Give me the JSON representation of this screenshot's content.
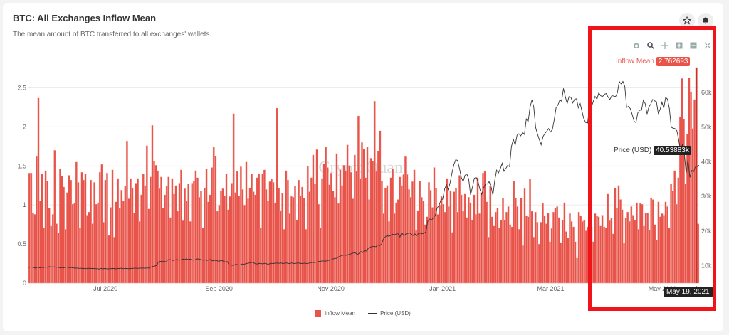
{
  "header": {
    "title": "BTC: All Exchanges Inflow Mean",
    "subtitle": "The mean amount of BTC transferred to all exchanges' wallets.",
    "star_icon": "star-icon",
    "bell_icon": "bell-icon"
  },
  "toolbar": {
    "icons": [
      "camera-icon",
      "zoom-icon",
      "pan-icon",
      "zoom-in-icon",
      "zoom-out-icon",
      "autoscale-icon"
    ]
  },
  "watermark": "CryptoQuant",
  "tooltip": {
    "inflow_label": "Inflow Mean",
    "inflow_value": "2.762693",
    "price_label": "Price (USD)",
    "price_value": "40.53883k",
    "date_label": "May 19, 2021"
  },
  "colors": {
    "bar": "#e8534a",
    "bar_edge": "#f7c6c1",
    "line": "#333333",
    "highlight": "#f0131a"
  },
  "chart_data": {
    "type": "bar",
    "title": "BTC: All Exchanges Inflow Mean",
    "x_range": [
      "2020-05-20",
      "2021-05-21"
    ],
    "x_ticks": [
      "Jul 2020",
      "Sep 2020",
      "Nov 2020",
      "Jan 2021",
      "Mar 2021",
      "May 2021"
    ],
    "y_left": {
      "ticks": [
        "0",
        "0.5",
        "1",
        "1.5",
        "2",
        "2.5"
      ],
      "range": [
        0,
        2.75
      ]
    },
    "y_right": {
      "ticks": [
        "10k",
        "20k",
        "30k",
        "40k",
        "50k",
        "60k"
      ],
      "range": [
        5000,
        67000
      ]
    },
    "grid": true,
    "legend_placement": "bottom-center",
    "series": [
      {
        "name": "Inflow Mean",
        "type": "bar",
        "axis": "left",
        "values": [
          1.41,
          1.41,
          0.9,
          0.88,
          1.62,
          2.37,
          1.05,
          1.4,
          0.71,
          1.44,
          1.31,
          0.96,
          0.73,
          0.88,
          1.7,
          0.76,
          0.64,
          1.46,
          1.37,
          1.23,
          0.69,
          1.16,
          1.38,
          1.32,
          1.01,
          1.02,
          1.55,
          1.29,
          0.71,
          1.42,
          1.32,
          1.4,
          0.87,
          0.91,
          1.32,
          0.76,
          1.29,
          1.01,
          1.03,
          1.42,
          1.52,
          0.78,
          1.32,
          1.41,
          0.61,
          0.97,
          1.45,
          0.59,
          1.04,
          1.34,
          0.96,
          1.19,
          1.05,
          1.24,
          1.82,
          1.08,
          1.34,
          1.22,
          0.9,
          1.28,
          1.34,
          0.79,
          1.13,
          1.4,
          1.25,
          1.76,
          0.95,
          1.36,
          2.02,
          1.56,
          1.51,
          1.44,
          1.21,
          1.36,
          0.96,
          1.13,
          1.24,
          1.36,
          0.84,
          1.34,
          1.14,
          1.25,
          0.92,
          1.28,
          1.45,
          0.8,
          1.21,
          1.05,
          1.27,
          0.79,
          1.28,
          1.31,
          1.44,
          1.35,
          1.1,
          1.18,
          0.71,
          1.22,
          1.46,
          1.04,
          1.13,
          1.48,
          1.74,
          1.63,
          0.92,
          1.0,
          1.18,
          1.21,
          1.12,
          1.4,
          0.94,
          1.11,
          1.28,
          2.17,
          1.16,
          1.43,
          1.12,
          1.49,
          1.2,
          1.0,
          1.55,
          1.08,
          1.22,
          1.4,
          1.17,
          1.13,
          1.35,
          1.4,
          0.71,
          1.4,
          1.45,
          1.2,
          1.05,
          1.3,
          1.33,
          1.29,
          1.03,
          2.24,
          1.22,
          0.93,
          1.15,
          0.69,
          1.44,
          1.32,
          0.89,
          1.11,
          1.1,
          1.24,
          0.81,
          1.32,
          1.12,
          1.23,
          1.09,
          0.69,
          1.5,
          1.17,
          1.35,
          1.64,
          1.27,
          1.71,
          1.01,
          0.71,
          1.34,
          1.53,
          1.74,
          1.48,
          1.26,
          1.41,
          1.18,
          1.1,
          1.66,
          1.02,
          1.45,
          1.25,
          1.51,
          1.44,
          1.77,
          1.5,
          1.42,
          1.08,
          1.64,
          1.43,
          2.14,
          1.34,
          1.8,
          1.72,
          1.35,
          1.74,
          1.07,
          1.6,
          1.56,
          2.33,
          1.43,
          1.69,
          1.95,
          1.31,
          0.89,
          1.22,
          1.25,
          0.79,
          1.35,
          1.46,
          0.89,
          1.03,
          1.07,
          1.36,
          1.25,
          1.39,
          1.62,
          1.39,
          1.2,
          1.1,
          1.3,
          1.45,
          0.68,
          0.93,
          1.31,
          1.1,
          1.05,
          0.75,
          0.85,
          1.29,
          1.19,
          0.97,
          1.48,
          1.22,
          0.88,
          1.0,
          1.11,
          1.01,
          0.91,
          1.34,
          0.98,
          1.18,
          0.65,
          1.17,
          1.22,
          0.91,
          1.38,
          1.13,
          0.92,
          1.14,
          0.84,
          1.1,
          1.03,
          0.81,
          1.13,
          0.88,
          1.35,
          0.89,
          1.16,
          1.41,
          1.43,
          1.04,
          0.59,
          1.24,
          0.85,
          0.73,
          0.91,
          0.96,
          0.71,
          0.81,
          1.09,
          0.81,
          0.91,
          0.98,
          0.75,
          0.72,
          1.31,
          1.09,
          0.98,
          0.69,
          1.09,
          0.48,
          1.21,
          0.86,
          0.85,
          1.33,
          0.92,
          0.59,
          0.91,
          0.78,
          0.5,
          0.78,
          1.02,
          0.86,
          0.76,
          0.9,
          0.53,
          0.7,
          0.91,
          0.96,
          0.98,
          0.84,
          0.52,
          0.81,
          1.03,
          0.66,
          0.58,
          0.89,
          0.79,
          0.72,
          0.53,
          0.32,
          0.91,
          0.86,
          0.79,
          0.81,
          0.67,
          0.72,
          0.81,
          0.72,
          0.53,
          0.89,
          0.86,
          0.85,
          0.73,
          0.87,
          0.72,
          0.71,
          1.14,
          0.8,
          0.83,
          0.63,
          1.22,
          0.96,
          1.25,
          1.07,
          0.94,
          0.51,
          0.83,
          0.91,
          0.79,
          0.98,
          0.87,
          0.81,
          1.03,
          0.69,
          1.02,
          1.01,
          0.73,
          0.9,
          0.9,
          0.68,
          1.09,
          1.07,
          0.75,
          0.55,
          1.04,
          0.85,
          0.89,
          0.87,
          1.04,
          0.98,
          0.71,
          1.27,
          1.18,
          1.44,
          1.01,
          1.35,
          2.13,
          2.62,
          2.1,
          1.27,
          1.91,
          2.63,
          2.45,
          1.98,
          2.35,
          2.76,
          0.76
        ]
      },
      {
        "name": "Price (USD)",
        "type": "line",
        "axis": "right",
        "values": [
          9500,
          9600,
          9600,
          9450,
          9300,
          9650,
          9400,
          9550,
          9450,
          9650,
          9550,
          9750,
          9700,
          9650,
          9700,
          9550,
          9600,
          9350,
          9500,
          9400,
          9600,
          9550,
          9450,
          9500,
          9400,
          9300,
          9350,
          9250,
          9300,
          9200,
          9250,
          9150,
          9300,
          9200,
          9250,
          9200,
          9150,
          9150,
          9050,
          9250,
          9100,
          9200,
          9150,
          9100,
          9150,
          9200,
          9200,
          9100,
          9250,
          9200,
          9300,
          9150,
          9250,
          9200,
          9150,
          9200,
          9250,
          9300,
          9300,
          9250,
          9350,
          9300,
          9350,
          9300,
          9350,
          9350,
          9650,
          9800,
          9900,
          10100,
          11100,
          11300,
          11200,
          11300,
          11100,
          11700,
          11800,
          11650,
          11500,
          11700,
          11800,
          11600,
          11700,
          11900,
          11800,
          12000,
          11800,
          11900,
          11700,
          11600,
          11800,
          12000,
          11900,
          11750,
          11600,
          11700,
          11500,
          11700,
          11800,
          11400,
          11500,
          11600,
          11300,
          11400,
          11500,
          11300,
          11100,
          11200,
          10300,
          10200,
          10100,
          10300,
          10400,
          10200,
          10250,
          10500,
          10400,
          10600,
          10700,
          10800,
          11000,
          10950,
          10600,
          10500,
          10650,
          10700,
          10500,
          10700,
          10600,
          10400,
          10600,
          10700,
          10650,
          10800,
          10750,
          10700,
          10800,
          10600,
          10750,
          10800,
          10600,
          10700,
          10800,
          10650,
          10700,
          10800,
          10750,
          10650,
          10700,
          10750,
          10600,
          10750,
          10900,
          11000,
          10900,
          11050,
          11200,
          11300,
          11350,
          11400,
          11300,
          11500,
          11600,
          11700,
          12000,
          12100,
          12200,
          12600,
          12800,
          13000,
          13100,
          13000,
          13200,
          13300,
          13500,
          13700,
          13700,
          13200,
          13600,
          14100,
          13800,
          14500,
          14200,
          15100,
          15300,
          15600,
          15600,
          15500,
          16000,
          15800,
          16200,
          17600,
          18300,
          18700,
          18500,
          18800,
          19100,
          18900,
          19200,
          19200,
          18300,
          19600,
          18700,
          19100,
          19300,
          19500,
          19200,
          18700,
          19200,
          18700,
          19300,
          19400,
          19200,
          19400,
          19800,
          23000,
          23500,
          23200,
          23800,
          24600,
          26700,
          27400,
          29000,
          29200,
          32100,
          33400,
          32000,
          34000,
          36800,
          39200,
          40600,
          40400,
          38100,
          35500,
          34300,
          36100,
          36500,
          35000,
          30500,
          32700,
          35300,
          35500,
          34300,
          32100,
          30600,
          32400,
          33600,
          33600,
          34300,
          32900,
          30400,
          34600,
          37600,
          36800,
          38000,
          39600,
          37300,
          38100,
          39000,
          38600,
          44400,
          46500,
          44800,
          47700,
          48100,
          47500,
          48500,
          47900,
          52400,
          51600,
          55700,
          57900,
          55800,
          49900,
          48000,
          46400,
          44900,
          47300,
          48200,
          48800,
          49600,
          48600,
          49300,
          52100,
          55600,
          56400,
          57800,
          57500,
          61200,
          58800,
          56800,
          58800,
          58600,
          57000,
          58100,
          58200,
          55600,
          56800,
          54500,
          52300,
          51300,
          51200,
          55700,
          55800,
          57400,
          58900,
          58100,
          59900,
          59100,
          58800,
          59500,
          59700,
          58700,
          58000,
          59100,
          59000,
          58800,
          59900,
          63200,
          62500,
          63200,
          61800,
          55700,
          56000,
          55300,
          53600,
          51700,
          51300,
          54100,
          54900,
          54900,
          57800,
          56800,
          53800,
          55900,
          56700,
          58000,
          57600,
          57400,
          54000,
          55100,
          57200,
          55500,
          58600,
          58100,
          55400,
          50000,
          49700,
          49600,
          49000,
          46400,
          43000,
          45000,
          42900,
          36700,
          40500,
          35500,
          37500,
          37200,
          38500,
          38600,
          39000
        ]
      }
    ]
  }
}
